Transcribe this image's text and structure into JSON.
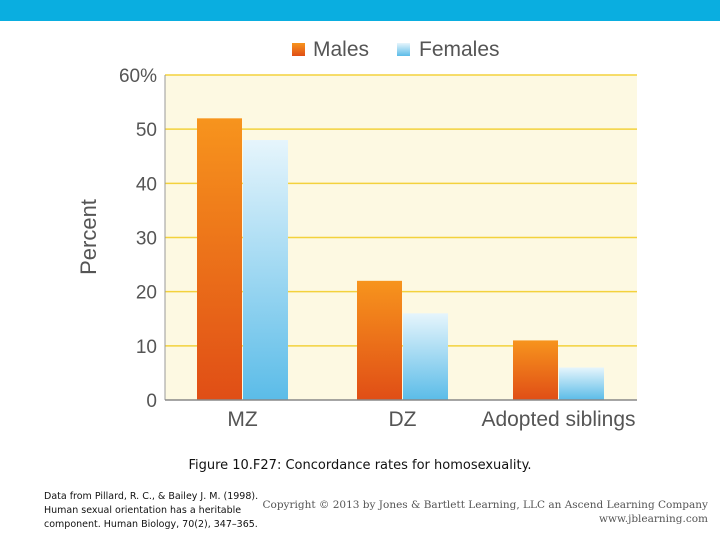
{
  "chart_data": {
    "type": "bar",
    "categories": [
      "MZ",
      "DZ",
      "Adopted siblings"
    ],
    "series": [
      {
        "name": "Males",
        "values": [
          52,
          22,
          11
        ]
      },
      {
        "name": "Females",
        "values": [
          48,
          16,
          6
        ]
      }
    ],
    "xlabel": "",
    "ylabel": "Percent",
    "ylim": [
      0,
      60
    ],
    "yticks": [
      "0",
      "10",
      "20",
      "30",
      "40",
      "50",
      "60%"
    ],
    "grid": true,
    "legend": "top"
  },
  "colors": {
    "males": "#e8621a",
    "females": "#6cc4ea",
    "plot_background": "#fdf9e2",
    "grid": "#f3d23c",
    "top_bar": "#0aaee0"
  },
  "caption": "Figure 10.F27: Concordance rates for homosexuality.",
  "source": {
    "line1": "Data from Pillard, R. C., & Bailey J. M. (1998).",
    "line2": "Human sexual orientation has a heritable",
    "line3": "component. Human Biology, 70(2), 347–365."
  },
  "copyright": {
    "line1": "Copyright © 2013 by Jones & Bartlett Learning, LLC an Ascend Learning Company",
    "line2": "www.jblearning.com"
  }
}
